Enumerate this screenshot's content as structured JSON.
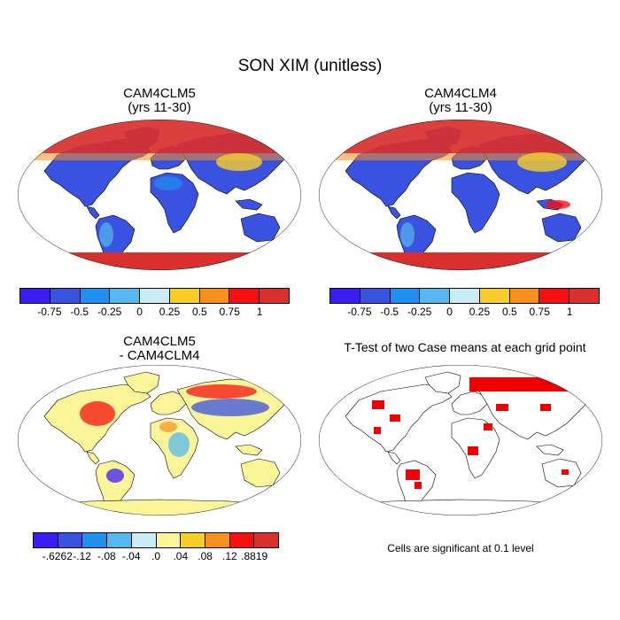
{
  "title": "SON XIM (unitless)",
  "panels": [
    {
      "id": "p1",
      "title_line1": "CAM4CLM5",
      "title_line2": "(yrs 11-30)"
    },
    {
      "id": "p2",
      "title_line1": "CAM4CLM4",
      "title_line2": "(yrs 11-30)"
    },
    {
      "id": "p3",
      "title_line1": "CAM4CLM5",
      "title_line2": "- CAM4CLM4"
    },
    {
      "id": "p4",
      "title_line1": "T-Test of two Case means at each grid point",
      "title_line2": ""
    }
  ],
  "colorbar_main": {
    "colors": [
      "#3a1cf5",
      "#3a52e0",
      "#1f8ff0",
      "#56b8ee",
      "#c9ecf7",
      "#f8cf2a",
      "#f7901c",
      "#f71010",
      "#d9302e"
    ],
    "ticks": [
      "-0.75",
      "-0.5",
      "-0.25",
      "0",
      "0.25",
      "0.5",
      "0.75",
      "1"
    ]
  },
  "colorbar_diff": {
    "colors": [
      "#3a1cf5",
      "#3a52e0",
      "#1f8ff0",
      "#56b8ee",
      "#c9ecf7",
      "#fbf59a",
      "#f8cf2a",
      "#f7901c",
      "#f71010",
      "#d9302e"
    ],
    "ticks": [
      "-.6262",
      "-.12",
      "-.08",
      "-.04",
      ".0",
      ".04",
      ".08",
      ".12",
      ".8819"
    ]
  },
  "note": "Cells are significant at 0.1 level",
  "colors": {
    "positive": "#d9302e",
    "negative": "#3a52e0",
    "significant": "#ee0000",
    "neutral": "#fbf59a"
  }
}
